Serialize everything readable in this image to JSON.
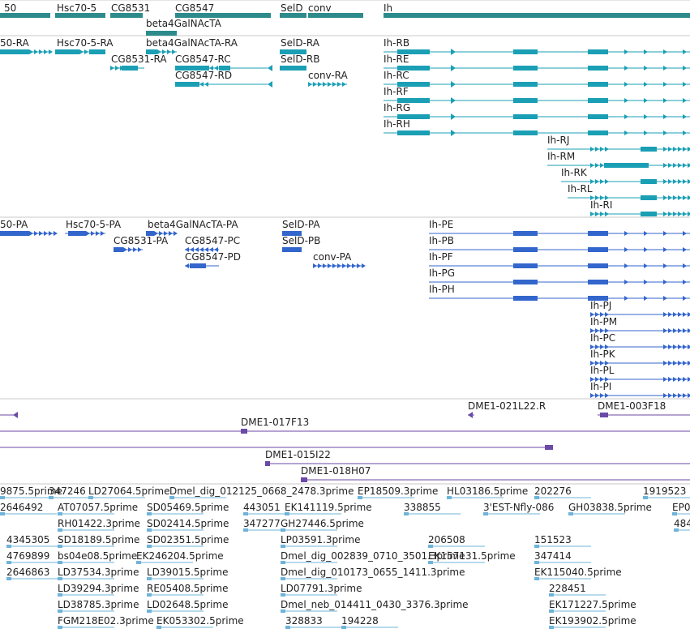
{
  "colors": {
    "gene": "#2e8b8b",
    "transcript": "#1a9fb5",
    "protein": "#3366cc",
    "clone": "#6a4aa6",
    "est": "#6fb4d8",
    "separator": "#c9c9c9"
  },
  "genes": [
    {
      "label": "50"
    },
    {
      "label": "Hsc70-5"
    },
    {
      "label": "CG8531"
    },
    {
      "label": "beta4GalNAcTA"
    },
    {
      "label": "CG8547"
    },
    {
      "label": "SelD"
    },
    {
      "label": "conv"
    },
    {
      "label": "Ih"
    }
  ],
  "transcripts": [
    {
      "label": "50-RA"
    },
    {
      "label": "Hsc70-5-RA"
    },
    {
      "label": "CG8531-RA"
    },
    {
      "label": "beta4GalNAcTA-RA"
    },
    {
      "label": "CG8547-RC"
    },
    {
      "label": "CG8547-RD"
    },
    {
      "label": "SelD-RA"
    },
    {
      "label": "SelD-RB"
    },
    {
      "label": "conv-RA"
    },
    {
      "label": "Ih-RB"
    },
    {
      "label": "Ih-RE"
    },
    {
      "label": "Ih-RC"
    },
    {
      "label": "Ih-RF"
    },
    {
      "label": "Ih-RG"
    },
    {
      "label": "Ih-RH"
    },
    {
      "label": "Ih-RJ"
    },
    {
      "label": "Ih-RM"
    },
    {
      "label": "Ih-RK"
    },
    {
      "label": "Ih-RL"
    },
    {
      "label": "Ih-RI"
    }
  ],
  "proteins": [
    {
      "label": "50-PA"
    },
    {
      "label": "Hsc70-5-PA"
    },
    {
      "label": "CG8531-PA"
    },
    {
      "label": "beta4GalNAcTA-PA"
    },
    {
      "label": "CG8547-PC"
    },
    {
      "label": "CG8547-PD"
    },
    {
      "label": "SelD-PA"
    },
    {
      "label": "SelD-PB"
    },
    {
      "label": "conv-PA"
    },
    {
      "label": "Ih-PE"
    },
    {
      "label": "Ih-PB"
    },
    {
      "label": "Ih-PF"
    },
    {
      "label": "Ih-PG"
    },
    {
      "label": "Ih-PH"
    },
    {
      "label": "Ih-PJ"
    },
    {
      "label": "Ih-PM"
    },
    {
      "label": "Ih-PC"
    },
    {
      "label": "Ih-PK"
    },
    {
      "label": "Ih-PL"
    },
    {
      "label": "Ih-PI"
    }
  ],
  "clones": [
    {
      "label": "DME1-021L22.R"
    },
    {
      "label": "DME1-003F18"
    },
    {
      "label": "DME1-017F13"
    },
    {
      "label": "DME1-015I22"
    },
    {
      "label": "DME1-018H07"
    }
  ],
  "ests": [
    {
      "label": "9875.5prime"
    },
    {
      "label": "347246"
    },
    {
      "label": "LD27064.5prime"
    },
    {
      "label": "Dmel_dig_012125_0668_2478.3prime"
    },
    {
      "label": "EP18509.3prime"
    },
    {
      "label": "HL03186.5prime"
    },
    {
      "label": "202276"
    },
    {
      "label": "1919523"
    },
    {
      "label": "2646492"
    },
    {
      "label": "AT07057.5prime"
    },
    {
      "label": "SD05469.5prime"
    },
    {
      "label": "443051"
    },
    {
      "label": "EK141119.5prime"
    },
    {
      "label": "338855"
    },
    {
      "label": "3'EST-Nfly-086"
    },
    {
      "label": "GH03838.5prime"
    },
    {
      "label": "EP0"
    },
    {
      "label": "RH01422.3prime"
    },
    {
      "label": "SD02414.5prime"
    },
    {
      "label": "347277"
    },
    {
      "label": "GH27446.5prime"
    },
    {
      "label": "484"
    },
    {
      "label": "4345305"
    },
    {
      "label": "SD18189.5prime"
    },
    {
      "label": "SD02351.5prime"
    },
    {
      "label": "LP03591.3prime"
    },
    {
      "label": "206508"
    },
    {
      "label": "151523"
    },
    {
      "label": "EK157131.5prime"
    },
    {
      "label": "347414"
    },
    {
      "label": "4769899"
    },
    {
      "label": "bs04e08.5prime"
    },
    {
      "label": "EK246204.5prime"
    },
    {
      "label": "Dmel_dig_002839_0710_3501.3prime"
    },
    {
      "label": "EK115040.5prime"
    },
    {
      "label": "2646863"
    },
    {
      "label": "LD37534.3prime"
    },
    {
      "label": "LD39015.5prime"
    },
    {
      "label": "Dmel_dig_010173_0655_1411.3prime"
    },
    {
      "label": "228451"
    },
    {
      "label": "LD39294.3prime"
    },
    {
      "label": "RE05408.5prime"
    },
    {
      "label": "LD07791.3prime"
    },
    {
      "label": "EK171227.5prime"
    },
    {
      "label": "LD38785.3prime"
    },
    {
      "label": "LD02648.5prime"
    },
    {
      "label": "Dmel_neb_014411_0430_3376.3prime"
    },
    {
      "label": "EK193902.5prime"
    },
    {
      "label": "FGM218E02.3prime"
    },
    {
      "label": "EK053302.5prime"
    },
    {
      "label": "328833"
    },
    {
      "label": "194228"
    }
  ]
}
